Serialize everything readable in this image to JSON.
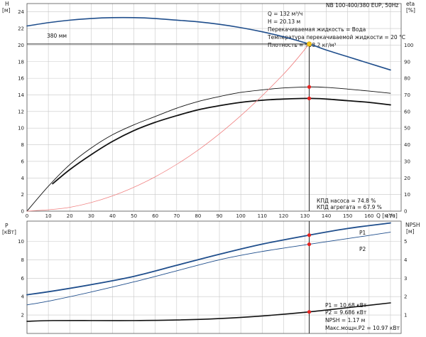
{
  "chart_data": [
    {
      "type": "line",
      "title": "NB 100-400/380 EUP, 50Hz",
      "xlabel": "Q [м³/ч]",
      "x_unit": "м³/ч",
      "ylabel_left": "H",
      "ylabel_left_unit": "[м]",
      "ylabel_right": "eta",
      "ylabel_right_unit": "[%]",
      "xlim": [
        0,
        175
      ],
      "ylim_left": [
        0,
        25
      ],
      "ylim_right": [
        0,
        125
      ],
      "x_ticks": [
        0,
        10,
        20,
        30,
        40,
        50,
        60,
        70,
        80,
        90,
        100,
        110,
        120,
        130,
        140,
        150,
        160,
        170
      ],
      "y_ticks_left": [
        0,
        2,
        4,
        6,
        8,
        10,
        12,
        14,
        16,
        18,
        20,
        22,
        24
      ],
      "y_ticks_right": [
        0,
        10,
        20,
        30,
        40,
        50,
        60,
        70,
        80,
        90,
        100
      ],
      "grid": true,
      "curve_label": "380 мм",
      "series": [
        {
          "name": "",
          "axis": "left",
          "color": "#1f4e8c",
          "x": [
            0,
            10,
            20,
            30,
            40,
            50,
            60,
            70,
            80,
            90,
            100,
            110,
            120,
            132,
            140,
            150,
            160,
            170
          ],
          "y": [
            22.3,
            22.7,
            23.0,
            23.2,
            23.3,
            23.3,
            23.2,
            23.0,
            22.8,
            22.5,
            22.1,
            21.6,
            21.0,
            20.13,
            19.4,
            18.6,
            17.8,
            17.0
          ]
        },
        {
          "name": "",
          "axis": "right",
          "color": "#111111",
          "width": 0.9,
          "x": [
            0,
            10,
            20,
            30,
            40,
            50,
            60,
            70,
            80,
            90,
            100,
            110,
            120,
            132,
            140,
            150,
            160,
            170
          ],
          "y": [
            0,
            15,
            28,
            38,
            46,
            52,
            57,
            62,
            66,
            69,
            71.5,
            73,
            74.2,
            74.8,
            74.5,
            73.5,
            72.3,
            71.0
          ]
        },
        {
          "name": "",
          "axis": "right",
          "color": "#111111",
          "width": 1.8,
          "x": [
            12,
            20,
            30,
            40,
            50,
            60,
            70,
            80,
            90,
            100,
            110,
            120,
            132,
            140,
            150,
            160,
            170
          ],
          "y": [
            16.5,
            25,
            34,
            42,
            48.5,
            53.5,
            57.5,
            61,
            63.5,
            65.5,
            66.8,
            67.5,
            67.9,
            67.5,
            66.5,
            65.5,
            64.0
          ]
        },
        {
          "name": "",
          "axis": "left",
          "color": "#f08080",
          "width": 0.8,
          "x": [
            0,
            20,
            40,
            60,
            80,
            100,
            120,
            132
          ],
          "y": [
            0,
            0.46,
            1.84,
            4.14,
            7.35,
            11.5,
            16.5,
            20.13
          ]
        }
      ],
      "duty_point": {
        "x": 132,
        "y": 20.13
      },
      "markers": [
        {
          "x": 132,
          "y": 74.8,
          "axis": "right"
        },
        {
          "x": 132,
          "y": 67.9,
          "axis": "right"
        }
      ],
      "annotations": [
        "Q = 132 м³/ч",
        "H = 20.13 м",
        "Перекачиваемая жидкость = Вода",
        "Температура перекачиваемой жидкости = 20 °C",
        "Плотность = 998.2 кг/м³"
      ],
      "efficiency_notes": [
        "КПД насоса = 74.8 %",
        "КПД агрегата = 67.9 %"
      ],
      "colors": {
        "grid": "#c8c8c8",
        "h_curve": "#1f4e8c",
        "system_curve": "#f08080",
        "duty": "#f5c518",
        "marker": "#e8211e"
      }
    },
    {
      "type": "line",
      "title": "",
      "xlabel": "",
      "ylabel_left": "P",
      "ylabel_left_unit": "[кВт]",
      "ylabel_right": "NPSH",
      "ylabel_right_unit": "[м]",
      "xlim": [
        0,
        175
      ],
      "ylim_left": [
        0,
        12.2
      ],
      "ylim_right": [
        0,
        6.1
      ],
      "y_ticks_left": [
        2,
        4,
        6,
        8,
        10
      ],
      "y_ticks_right": [
        1,
        2,
        3,
        4,
        5
      ],
      "grid": true,
      "series": [
        {
          "name": "P1",
          "axis": "left",
          "color": "#1f4e8c",
          "width": 1.8,
          "x": [
            0,
            12,
            30,
            50,
            70,
            90,
            110,
            132,
            150,
            170
          ],
          "y": [
            4.2,
            4.6,
            5.3,
            6.2,
            7.4,
            8.6,
            9.7,
            10.68,
            11.4,
            12.0
          ]
        },
        {
          "name": "P2",
          "axis": "left",
          "color": "#1f4e8c",
          "width": 0.9,
          "x": [
            0,
            12,
            30,
            50,
            70,
            90,
            110,
            132,
            150,
            170
          ],
          "y": [
            3.1,
            3.6,
            4.5,
            5.6,
            6.8,
            8.0,
            8.9,
            9.686,
            10.3,
            11.0
          ]
        },
        {
          "name": "NPSH",
          "axis": "right",
          "color": "#111111",
          "width": 1.6,
          "x": [
            0,
            12,
            30,
            50,
            70,
            90,
            110,
            132,
            150,
            170
          ],
          "y": [
            0.66,
            0.7,
            0.7,
            0.7,
            0.73,
            0.81,
            0.95,
            1.17,
            1.4,
            1.66
          ]
        }
      ],
      "markers": [
        {
          "x": 132,
          "y": 10.68,
          "axis": "left"
        },
        {
          "x": 132,
          "y": 9.686,
          "axis": "left"
        },
        {
          "x": 132,
          "y": 1.17,
          "axis": "right"
        }
      ],
      "annotations": [
        "P1 = 10.68 кВт",
        "P2 = 9.686 кВт",
        "NPSH = 1.17 м",
        "Макс.мощн.P2 = 10.97 кВт"
      ]
    }
  ]
}
